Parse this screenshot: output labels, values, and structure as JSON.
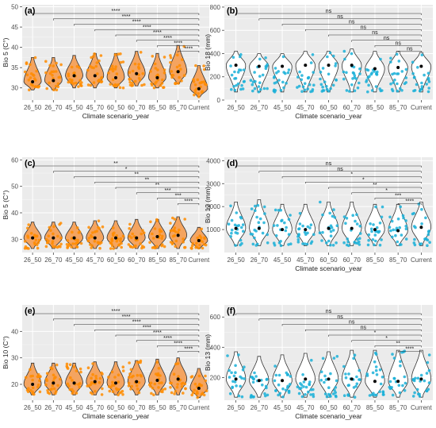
{
  "chart_data": [
    {
      "type": "violin",
      "panel_label": "(a)",
      "xlabel": "Climate scenario_year",
      "ylabel": "Bio 5 (C°)",
      "categories": [
        "26_50",
        "26_70",
        "45_50",
        "45_70",
        "60_50",
        "60_70",
        "85_50",
        "85_70",
        "Current"
      ],
      "y_ticks": [
        30,
        35,
        40,
        45,
        50
      ],
      "ylim": [
        27,
        50.5
      ],
      "grid": true,
      "fill_color": "#f4a460",
      "point_color": "#ff8c00",
      "medians": [
        31.5,
        31.8,
        33,
        33,
        32.5,
        33.5,
        32.5,
        34,
        29.8
      ],
      "ranges": [
        [
          29.5,
          37.5
        ],
        [
          29.5,
          37.5
        ],
        [
          30,
          38
        ],
        [
          30,
          38.5
        ],
        [
          30,
          38.5
        ],
        [
          30.5,
          39
        ],
        [
          30,
          38.5
        ],
        [
          31,
          40.5
        ],
        [
          27.8,
          35.5
        ]
      ],
      "comparisons": [
        {
          "group": "26_50",
          "label": "****"
        },
        {
          "group": "26_70",
          "label": "****"
        },
        {
          "group": "45_50",
          "label": "****"
        },
        {
          "group": "45_70",
          "label": "****"
        },
        {
          "group": "60_50",
          "label": "****"
        },
        {
          "group": "60_70",
          "label": "****"
        },
        {
          "group": "85_50",
          "label": "****"
        },
        {
          "group": "85_70",
          "label": "****"
        }
      ]
    },
    {
      "type": "violin",
      "panel_label": "(b)",
      "xlabel": "Climate scenario_year",
      "ylabel": "Bio 18 (mm)",
      "categories": [
        "26_50",
        "26_70",
        "45_50",
        "45_70",
        "60_50",
        "60_70",
        "85_50",
        "85_70",
        "Current"
      ],
      "y_ticks": [
        0,
        200,
        400,
        600,
        800
      ],
      "ylim": [
        0,
        820
      ],
      "grid": true,
      "fill_color": "#ffffff",
      "point_color": "#1ab0d8",
      "medians": [
        300,
        290,
        290,
        300,
        300,
        300,
        270,
        280,
        290
      ],
      "ranges": [
        [
          70,
          420
        ],
        [
          70,
          400
        ],
        [
          70,
          400
        ],
        [
          70,
          420
        ],
        [
          70,
          420
        ],
        [
          70,
          440
        ],
        [
          70,
          420
        ],
        [
          70,
          420
        ],
        [
          70,
          410
        ]
      ],
      "comparisons": [
        {
          "group": "26_50",
          "label": "ns"
        },
        {
          "group": "26_70",
          "label": "ns"
        },
        {
          "group": "45_50",
          "label": "ns"
        },
        {
          "group": "45_70",
          "label": "ns"
        },
        {
          "group": "60_50",
          "label": "ns"
        },
        {
          "group": "60_70",
          "label": "ns"
        },
        {
          "group": "85_50",
          "label": "ns"
        },
        {
          "group": "85_70",
          "label": "ns"
        }
      ]
    },
    {
      "type": "violin",
      "panel_label": "(c)",
      "xlabel": "",
      "ylabel": "Bio 5 (C°)",
      "categories": [
        "26_50",
        "26_70",
        "45_50",
        "45_70",
        "60_50",
        "60_70",
        "85_50",
        "85_70",
        "Current"
      ],
      "y_ticks": [
        30,
        40,
        50,
        60
      ],
      "ylim": [
        25,
        61
      ],
      "grid": true,
      "fill_color": "#f4a460",
      "point_color": "#ff8c00",
      "medians": [
        30.5,
        30.5,
        30.5,
        30.5,
        30.5,
        30.5,
        31,
        31.5,
        29.5
      ],
      "ranges": [
        [
          26.5,
          36.5
        ],
        [
          26.5,
          36.5
        ],
        [
          26.5,
          36.5
        ],
        [
          26.5,
          37
        ],
        [
          26.5,
          37
        ],
        [
          26.5,
          37.5
        ],
        [
          26.5,
          37.5
        ],
        [
          26.5,
          38.5
        ],
        [
          26.5,
          34.5
        ]
      ],
      "comparisons": [
        {
          "group": "26_50",
          "label": "**"
        },
        {
          "group": "26_70",
          "label": "*"
        },
        {
          "group": "45_50",
          "label": "**"
        },
        {
          "group": "45_70",
          "label": "**"
        },
        {
          "group": "60_50",
          "label": "**"
        },
        {
          "group": "60_70",
          "label": "***"
        },
        {
          "group": "85_50",
          "label": "***"
        },
        {
          "group": "85_70",
          "label": "****"
        }
      ]
    },
    {
      "type": "violin",
      "panel_label": "(d)",
      "xlabel": "Climate scenario_year",
      "ylabel": "Bio 12 (mm)",
      "categories": [
        "26_50",
        "26_70",
        "45_50",
        "45_70",
        "60_50",
        "60_70",
        "85_50",
        "85_70",
        "Current"
      ],
      "y_ticks": [
        1000,
        2000,
        3000,
        4000
      ],
      "ylim": [
        0,
        4150
      ],
      "grid": true,
      "fill_color": "#ffffff",
      "point_color": "#1ab0d8",
      "medians": [
        1050,
        1050,
        1000,
        1000,
        1050,
        1050,
        1000,
        950,
        1100
      ],
      "ranges": [
        [
          300,
          2200
        ],
        [
          300,
          2300
        ],
        [
          300,
          2100
        ],
        [
          300,
          2100
        ],
        [
          300,
          2200
        ],
        [
          300,
          2200
        ],
        [
          300,
          2100
        ],
        [
          300,
          2100
        ],
        [
          300,
          2200
        ]
      ],
      "comparisons": [
        {
          "group": "26_50",
          "label": "ns"
        },
        {
          "group": "26_70",
          "label": "ns"
        },
        {
          "group": "45_50",
          "label": "*"
        },
        {
          "group": "45_70",
          "label": "*"
        },
        {
          "group": "60_50",
          "label": "**"
        },
        {
          "group": "60_70",
          "label": "*"
        },
        {
          "group": "85_50",
          "label": "***"
        },
        {
          "group": "85_70",
          "label": "****"
        }
      ]
    },
    {
      "type": "violin",
      "panel_label": "(e)",
      "xlabel": "Climate scenario_year",
      "ylabel": "Bio 10 (C°)",
      "categories": [
        "26_50",
        "26_70",
        "45_50",
        "45_70",
        "60_50",
        "60_70",
        "85_50",
        "85_70",
        "Current"
      ],
      "y_ticks": [
        20,
        30,
        40
      ],
      "ylim": [
        14,
        50
      ],
      "grid": true,
      "fill_color": "#f4a460",
      "point_color": "#ff8c00",
      "medians": [
        20,
        20.5,
        20.5,
        21,
        20.5,
        21,
        21.5,
        22,
        18.5
      ],
      "ranges": [
        [
          16,
          28
        ],
        [
          16,
          28
        ],
        [
          16,
          28
        ],
        [
          16,
          28.5
        ],
        [
          16,
          28.5
        ],
        [
          16,
          29
        ],
        [
          16,
          29.5
        ],
        [
          16,
          30
        ],
        [
          15,
          26
        ]
      ],
      "comparisons": [
        {
          "group": "26_50",
          "label": "****"
        },
        {
          "group": "26_70",
          "label": "****"
        },
        {
          "group": "45_50",
          "label": "****"
        },
        {
          "group": "45_70",
          "label": "****"
        },
        {
          "group": "60_50",
          "label": "****"
        },
        {
          "group": "60_70",
          "label": "****"
        },
        {
          "group": "85_50",
          "label": "****"
        },
        {
          "group": "85_70",
          "label": "****"
        }
      ]
    },
    {
      "type": "violin",
      "panel_label": "(f)",
      "xlabel": "Climate scenario_year",
      "ylabel": "Bio 13 (mm)",
      "categories": [
        "26_50",
        "26_70",
        "45_50",
        "45_70",
        "60_50",
        "60_70",
        "85_50",
        "85_70",
        "Current"
      ],
      "y_ticks": [
        200,
        400,
        600
      ],
      "ylim": [
        50,
        680
      ],
      "grid": true,
      "fill_color": "#ffffff",
      "point_color": "#1ab0d8",
      "medians": [
        190,
        180,
        180,
        190,
        190,
        190,
        175,
        175,
        190
      ],
      "ranges": [
        [
          70,
          370
        ],
        [
          70,
          340
        ],
        [
          70,
          350
        ],
        [
          70,
          360
        ],
        [
          70,
          370
        ],
        [
          70,
          380
        ],
        [
          70,
          380
        ],
        [
          70,
          380
        ],
        [
          70,
          380
        ]
      ],
      "comparisons": [
        {
          "group": "26_50",
          "label": "ns"
        },
        {
          "group": "26_70",
          "label": "ns"
        },
        {
          "group": "45_50",
          "label": "ns"
        },
        {
          "group": "45_70",
          "label": "ns"
        },
        {
          "group": "60_50",
          "label": "*"
        },
        {
          "group": "60_70",
          "label": "*"
        },
        {
          "group": "85_50",
          "label": "**"
        },
        {
          "group": "85_70",
          "label": "****"
        }
      ]
    }
  ]
}
